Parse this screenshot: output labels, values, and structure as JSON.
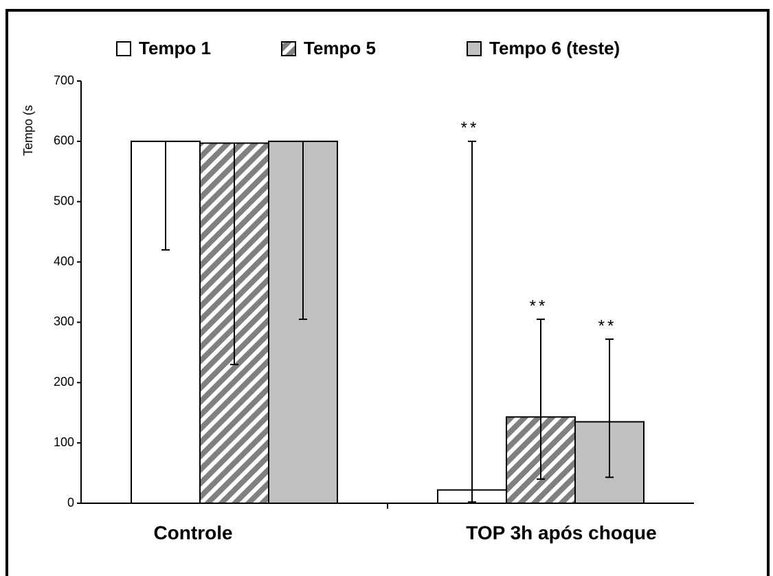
{
  "chart_data": {
    "type": "bar",
    "y_label": "Tempo (s",
    "categories": [
      "Controle",
      "TOP 3h após choque"
    ],
    "series": [
      {
        "name": "Tempo 1",
        "color": "#ffffff",
        "values": [
          600,
          22
        ],
        "error_low": [
          180,
          20
        ],
        "error_high": [
          0,
          578
        ]
      },
      {
        "name": "Tempo 5",
        "color": "#808080",
        "pattern": "hatch",
        "values": [
          597,
          143
        ],
        "error_low": [
          367,
          103
        ],
        "error_high": [
          0,
          162
        ]
      },
      {
        "name": "Tempo 6 (teste)",
        "color": "#c0c0c0",
        "values": [
          600,
          135
        ],
        "error_low": [
          295,
          92
        ],
        "error_high": [
          0,
          137
        ]
      }
    ],
    "annotations": [
      {
        "text": "**",
        "series": 0,
        "category": 1
      },
      {
        "text": "**",
        "series": 1,
        "category": 1
      },
      {
        "text": "**",
        "series": 2,
        "category": 1
      }
    ],
    "ylim": [
      0,
      700
    ],
    "yticks": [
      0,
      100,
      200,
      300,
      400,
      500,
      600,
      700
    ],
    "grid": false
  }
}
